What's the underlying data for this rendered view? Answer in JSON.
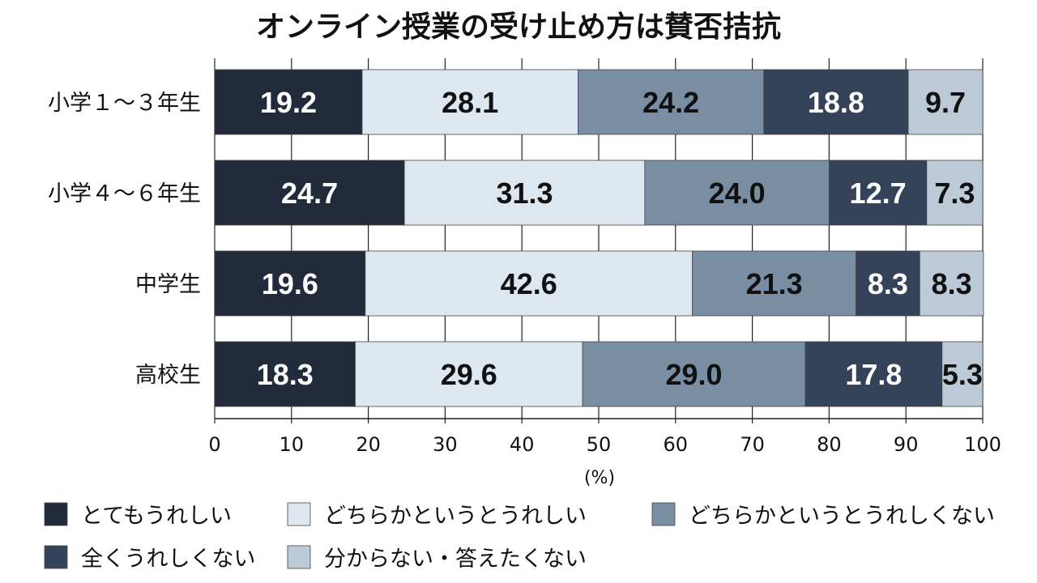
{
  "chart_data": {
    "type": "bar",
    "orientation": "horizontal",
    "stacked": true,
    "title": "オンライン授業の受け止め方は賛否拮抗",
    "xlabel": "(%)",
    "xlim": [
      0,
      100
    ],
    "x_ticks": [
      "0",
      "10",
      "20",
      "30",
      "40",
      "50",
      "60",
      "70",
      "80",
      "90",
      "100"
    ],
    "grid": "vertical",
    "legend_position": "bottom",
    "categories": [
      "小学１～３年生",
      "小学４～６年生",
      "中学生",
      "高校生"
    ],
    "series": [
      {
        "name": "とてもうれしい",
        "color": "#222b3b",
        "text_color": "#ffffff",
        "values": [
          19.2,
          24.7,
          19.6,
          18.3
        ]
      },
      {
        "name": "どちらかというとうれしい",
        "color": "#dde7f0",
        "text_color": "#111111",
        "values": [
          28.1,
          31.3,
          42.6,
          29.6
        ]
      },
      {
        "name": "どちらかというとうれしくない",
        "color": "#7a8ea3",
        "text_color": "#111111",
        "values": [
          24.2,
          24.0,
          21.3,
          29.0
        ]
      },
      {
        "name": "全くうれしくない",
        "color": "#34425a",
        "text_color": "#ffffff",
        "values": [
          18.8,
          12.7,
          8.3,
          17.8
        ]
      },
      {
        "name": "分からない・答えたくない",
        "color": "#bcc9d6",
        "text_color": "#111111",
        "values": [
          9.7,
          7.3,
          8.3,
          5.3
        ]
      }
    ],
    "value_labels": [
      [
        "19.2",
        "28.1",
        "24.2",
        "18.8",
        "9.7"
      ],
      [
        "24.7",
        "31.3",
        "24.0",
        "12.7",
        "7.3"
      ],
      [
        "19.6",
        "42.6",
        "21.3",
        "8.3",
        "8.3"
      ],
      [
        "18.3",
        "29.6",
        "29.0",
        "17.8",
        "5.3"
      ]
    ]
  }
}
